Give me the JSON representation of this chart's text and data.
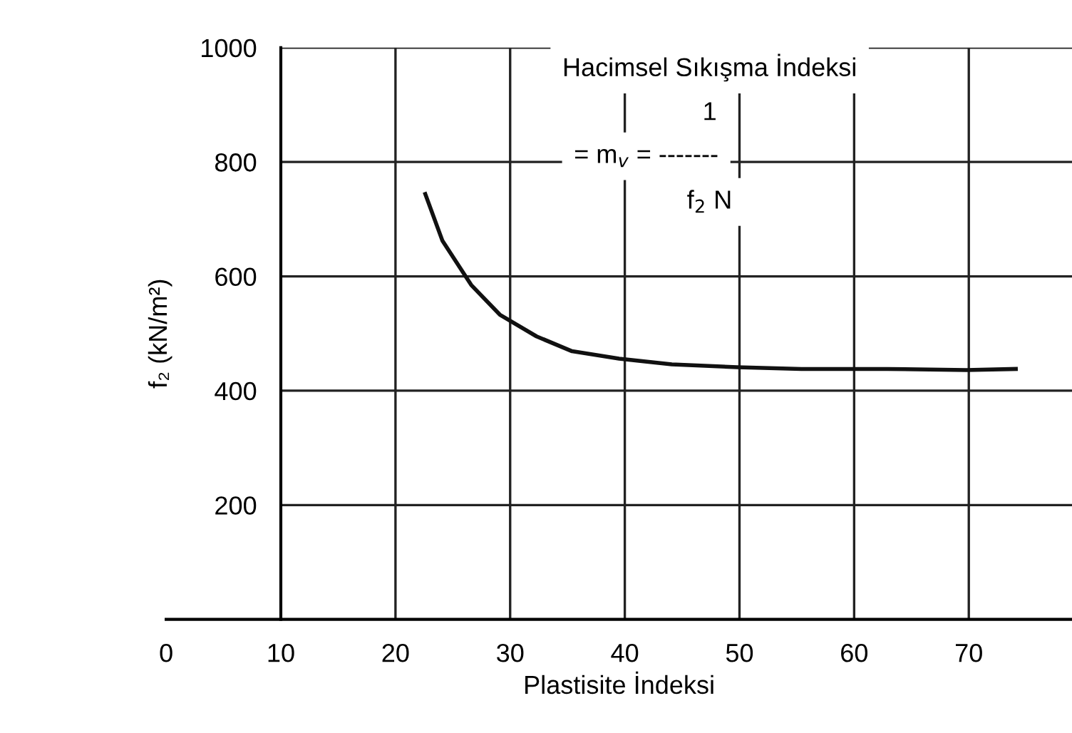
{
  "chart_data": {
    "type": "line",
    "xlabel": "Plastisite İndeksi",
    "ylabel": "f₂ (kN/m²)",
    "x": [
      22.6,
      24.1,
      26.6,
      29.1,
      32.3,
      35.4,
      39.5,
      44.1,
      49.8,
      55.4,
      62.9,
      69.8,
      74.1
    ],
    "series": [
      {
        "color": "#111111",
        "values": [
          744,
          662,
          585,
          533,
          495,
          469,
          456,
          446,
          441,
          438,
          438,
          436,
          438
        ]
      }
    ],
    "xlim": [
      0,
      79
    ],
    "ylim": [
      0,
      1000
    ],
    "xticks": [
      0,
      10,
      20,
      30,
      40,
      50,
      60,
      70
    ],
    "yticks": [
      200,
      400,
      600,
      800,
      1000
    ],
    "grid": true,
    "line_style": "solid",
    "marker": "none",
    "annotations": [
      "Hacimsel Sıkışma İndeksi",
      "1",
      "= m$_{v}$ = -------",
      "f$_{2}$ N"
    ]
  }
}
